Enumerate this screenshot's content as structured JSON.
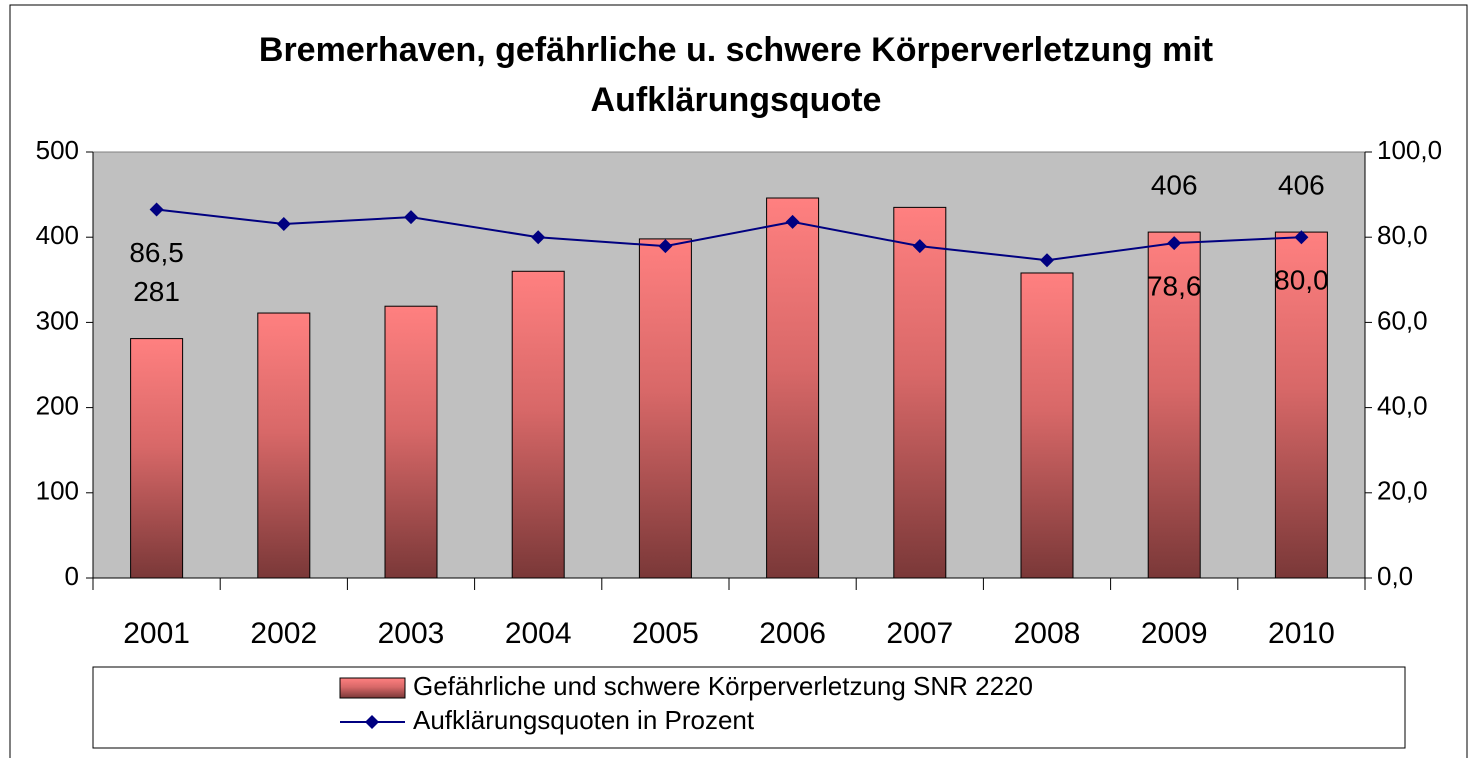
{
  "chart_data": {
    "type": "bar",
    "title": "Bremerhaven, gefährliche u. schwere Körperverletzung mit Aufklärungsquote",
    "categories": [
      "2001",
      "2002",
      "2003",
      "2004",
      "2005",
      "2006",
      "2007",
      "2008",
      "2009",
      "2010"
    ],
    "series": [
      {
        "name": "Gefährliche und schwere Körperverletzung SNR 2220",
        "type": "bar",
        "color": "#ff8080",
        "values": [
          281,
          311,
          319,
          360,
          398,
          446,
          435,
          358,
          406,
          406
        ],
        "value_labels": [
          "281",
          null,
          null,
          null,
          null,
          null,
          null,
          null,
          "406",
          "406"
        ]
      },
      {
        "name": "Aufklärungsquoten in Prozent",
        "type": "line",
        "axis": "y2",
        "color": "#000080",
        "values": [
          86.5,
          83.1,
          84.7,
          80.0,
          77.9,
          83.6,
          77.9,
          74.6,
          78.6,
          80.0
        ],
        "value_labels": [
          "86,5",
          null,
          null,
          null,
          null,
          null,
          null,
          null,
          "78,6",
          "80,0"
        ]
      }
    ],
    "ylim": [
      0,
      500
    ],
    "yticks": [
      0,
      100,
      200,
      300,
      400,
      500
    ],
    "y2lim": [
      0,
      100
    ],
    "y2ticks": [
      {
        "value": 0,
        "label": "0,0"
      },
      {
        "value": 20,
        "label": "20,0"
      },
      {
        "value": 40,
        "label": "40,0"
      },
      {
        "value": 60,
        "label": "60,0"
      },
      {
        "value": 80,
        "label": "80,0"
      },
      {
        "value": 100,
        "label": "100,0"
      }
    ],
    "grid": false,
    "legend": "bottom"
  }
}
